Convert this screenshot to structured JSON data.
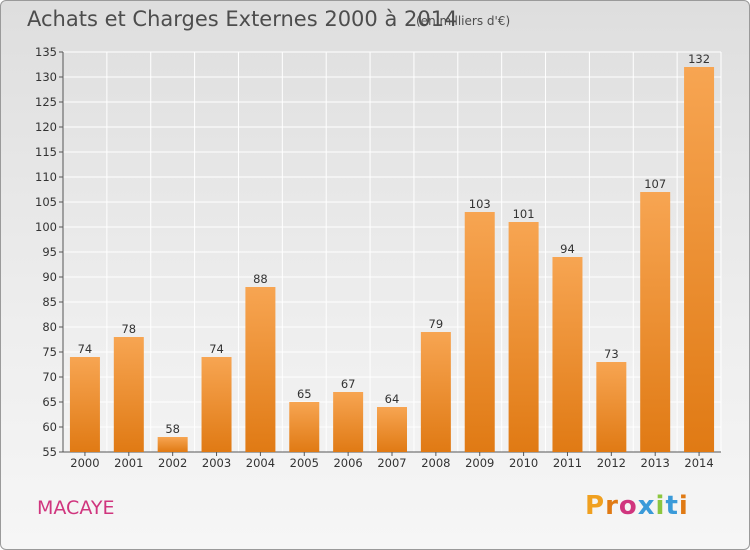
{
  "header": {
    "title": "Achats et Charges Externes 2000 à 2014",
    "unit": "(en milliers d'€)"
  },
  "footer": {
    "commune": "MACAYE",
    "logo_letters": [
      "P",
      "r",
      "o",
      "x",
      "i",
      "t",
      "i"
    ]
  },
  "colors": {
    "bar_top": "#f7a552",
    "bar_bottom": "#e07a14",
    "grid": "#ffffff",
    "commune": "#d0357e",
    "logo": [
      "#f0a020",
      "#e07a14",
      "#d0357e",
      "#3a9ad9",
      "#8cc63f",
      "#3a9ad9",
      "#e07a14"
    ]
  },
  "chart_data": {
    "type": "bar",
    "title": "Achats et Charges Externes 2000 à 2014",
    "subtitle": "(en milliers d'€)",
    "categories": [
      "2000",
      "2001",
      "2002",
      "2003",
      "2004",
      "2005",
      "2006",
      "2007",
      "2008",
      "2009",
      "2010",
      "2011",
      "2012",
      "2013",
      "2014"
    ],
    "values": [
      74,
      78,
      58,
      74,
      88,
      65,
      67,
      64,
      79,
      103,
      101,
      94,
      73,
      107,
      132
    ],
    "ylim": [
      55,
      135
    ],
    "yticks": [
      55,
      60,
      65,
      70,
      75,
      80,
      85,
      90,
      95,
      100,
      105,
      110,
      115,
      120,
      125,
      130,
      135
    ],
    "grid": true,
    "xlabel": "",
    "ylabel": ""
  }
}
